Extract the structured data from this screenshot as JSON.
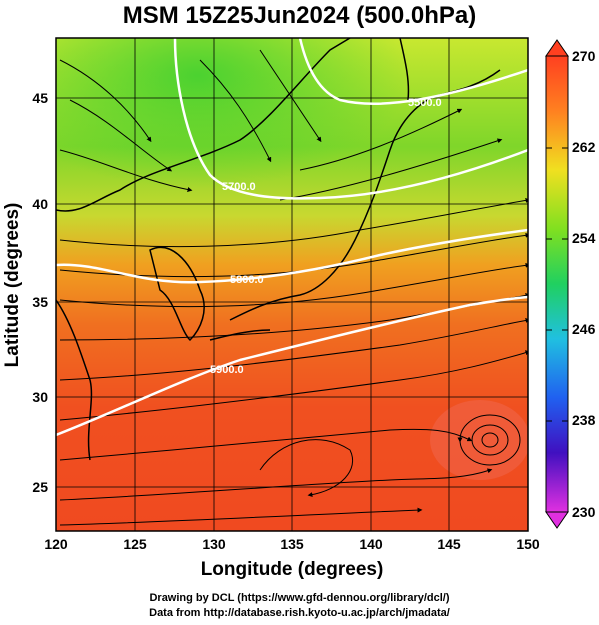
{
  "title": "MSM 15Z25Jun2024 (500.0hPa)",
  "credits": {
    "line1": "Drawing by DCL (https://www.gfd-dennou.org/library/dcl/)",
    "line2": "Data from http://database.rish.kyoto-u.ac.jp/arch/jmadata/"
  },
  "axes": {
    "xlabel": "Longitude (degrees)",
    "ylabel": "Latitude  (degrees)",
    "x_ticks": [
      "120",
      "125",
      "130",
      "135",
      "140",
      "145",
      "150"
    ],
    "y_ticks": [
      "25",
      "30",
      "35",
      "40",
      "45"
    ]
  },
  "colorbar": {
    "ticks": [
      "270",
      "262",
      "254",
      "246",
      "238",
      "230"
    ]
  },
  "chart_data": {
    "type": "heatmap",
    "title": "MSM 15Z25Jun2024 (500.0hPa)",
    "xlabel": "Longitude (degrees)",
    "ylabel": "Latitude  (degrees)",
    "xlim": [
      120,
      150
    ],
    "ylim": [
      22.4,
      47.6
    ],
    "color_scale": {
      "min": 230,
      "max": 270
    },
    "contours": [
      {
        "label": "5500.0",
        "value": 5500
      },
      {
        "label": "5700.0",
        "value": 5700
      },
      {
        "label": "5800.0",
        "value": 5800
      },
      {
        "label": "5900.0",
        "value": 5900
      }
    ],
    "streamlines": true,
    "grid": true
  }
}
